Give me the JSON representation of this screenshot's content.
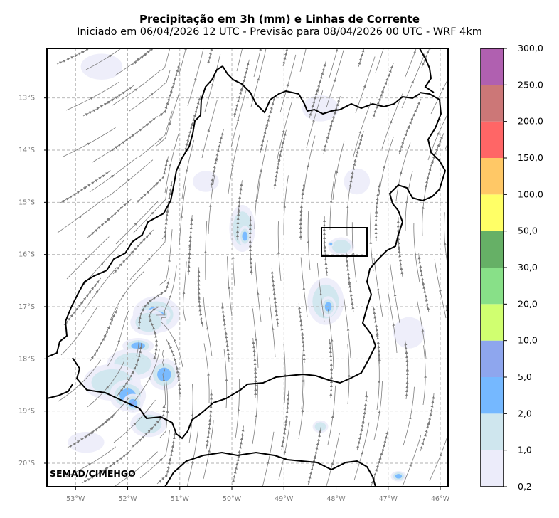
{
  "figure": {
    "title": "Precipitação em 3h (mm) e Linhas de Corrente",
    "subtitle": "Iniciado em 06/04/2026 12 UTC - Previsão para 08/04/2026 00 UTC - WRF 4km",
    "credit": "SEMAD/CIMEHGO"
  },
  "map": {
    "lon_range": [
      -53.55,
      -45.85
    ],
    "lat_range": [
      -20.45,
      -12.05
    ],
    "lon_ticks": [
      {
        "value": -53,
        "label": "53°W"
      },
      {
        "value": -52,
        "label": "52°W"
      },
      {
        "value": -51,
        "label": "51°W"
      },
      {
        "value": -50,
        "label": "50°W"
      },
      {
        "value": -49,
        "label": "49°W"
      },
      {
        "value": -48,
        "label": "48°W"
      },
      {
        "value": -47,
        "label": "47°W"
      },
      {
        "value": -46,
        "label": "46°W"
      }
    ],
    "lat_ticks": [
      {
        "value": -13,
        "label": "13°S"
      },
      {
        "value": -14,
        "label": "14°S"
      },
      {
        "value": -15,
        "label": "15°S"
      },
      {
        "value": -16,
        "label": "16°S"
      },
      {
        "value": -17,
        "label": "17°S"
      },
      {
        "value": -18,
        "label": "18°S"
      },
      {
        "value": -19,
        "label": "19°S"
      },
      {
        "value": -20,
        "label": "20°S"
      }
    ],
    "gridlines": true,
    "colors": {
      "streamline": "#808080",
      "border": "#000000",
      "grid": "#b0b0b0",
      "frame": "#000000"
    },
    "precip_cells": [
      {
        "lon": -51.45,
        "lat": -17.15,
        "rlon": 0.45,
        "rlat": 0.35,
        "level": 2
      },
      {
        "lon": -51.4,
        "lat": -17.15,
        "rlon": 0.22,
        "rlat": 0.14,
        "level": 3
      },
      {
        "lon": -51.6,
        "lat": -17.3,
        "rlon": 0.35,
        "rlat": 0.25,
        "level": 1
      },
      {
        "lon": -51.8,
        "lat": -17.75,
        "rlon": 0.3,
        "rlat": 0.15,
        "level": 2
      },
      {
        "lon": -51.9,
        "lat": -18.1,
        "rlon": 0.5,
        "rlat": 0.3,
        "level": 1
      },
      {
        "lon": -51.3,
        "lat": -18.3,
        "rlon": 0.3,
        "rlat": 0.3,
        "level": 2
      },
      {
        "lon": -52.3,
        "lat": -18.45,
        "rlon": 0.55,
        "rlat": 0.35,
        "level": 1
      },
      {
        "lon": -52.0,
        "lat": -18.7,
        "rlon": 0.35,
        "rlat": 0.3,
        "level": 2
      },
      {
        "lon": -51.9,
        "lat": -18.85,
        "rlon": 0.2,
        "rlat": 0.18,
        "level": 3
      },
      {
        "lon": -51.6,
        "lat": -19.25,
        "rlon": 0.35,
        "rlat": 0.25,
        "level": 1
      },
      {
        "lon": -49.8,
        "lat": -15.5,
        "rlon": 0.25,
        "rlat": 0.45,
        "level": 1
      },
      {
        "lon": -49.75,
        "lat": -15.65,
        "rlon": 0.12,
        "rlat": 0.2,
        "level": 2
      },
      {
        "lon": -48.2,
        "lat": -16.9,
        "rlon": 0.35,
        "rlat": 0.45,
        "level": 1
      },
      {
        "lon": -48.15,
        "lat": -17.0,
        "rlon": 0.15,
        "rlat": 0.2,
        "level": 2
      },
      {
        "lon": -47.9,
        "lat": -15.85,
        "rlon": 0.25,
        "rlat": 0.18,
        "level": 1
      },
      {
        "lon": -48.1,
        "lat": -15.8,
        "rlon": 0.06,
        "rlat": 0.05,
        "level": 3
      },
      {
        "lon": -50.5,
        "lat": -14.6,
        "rlon": 0.25,
        "rlat": 0.2,
        "level": 0
      },
      {
        "lon": -48.3,
        "lat": -13.2,
        "rlon": 0.35,
        "rlat": 0.25,
        "level": 0
      },
      {
        "lon": -47.6,
        "lat": -14.6,
        "rlon": 0.25,
        "rlat": 0.25,
        "level": 0
      },
      {
        "lon": -52.5,
        "lat": -12.4,
        "rlon": 0.4,
        "rlat": 0.25,
        "level": 0
      },
      {
        "lon": -48.3,
        "lat": -19.3,
        "rlon": 0.15,
        "rlat": 0.12,
        "level": 1
      },
      {
        "lon": -46.8,
        "lat": -20.25,
        "rlon": 0.15,
        "rlat": 0.1,
        "level": 2
      },
      {
        "lon": -52.8,
        "lat": -19.6,
        "rlon": 0.35,
        "rlat": 0.2,
        "level": 0
      },
      {
        "lon": -46.6,
        "lat": -17.5,
        "rlon": 0.3,
        "rlat": 0.3,
        "level": 0
      }
    ]
  },
  "colorbar": {
    "boundaries": [
      "0,2",
      "1,0",
      "2,0",
      "5,0",
      "10,0",
      "20,0",
      "30,0",
      "50,0",
      "100,0",
      "150,0",
      "200,0",
      "250,0",
      "300,0"
    ],
    "colors": [
      "#ececfa",
      "#cfe6ee",
      "#75b8ff",
      "#8ea6ee",
      "#d0ff70",
      "#88e088",
      "#66b066",
      "#ffff66",
      "#ffc866",
      "#ff6666",
      "#cc7777",
      "#b060b0"
    ]
  }
}
